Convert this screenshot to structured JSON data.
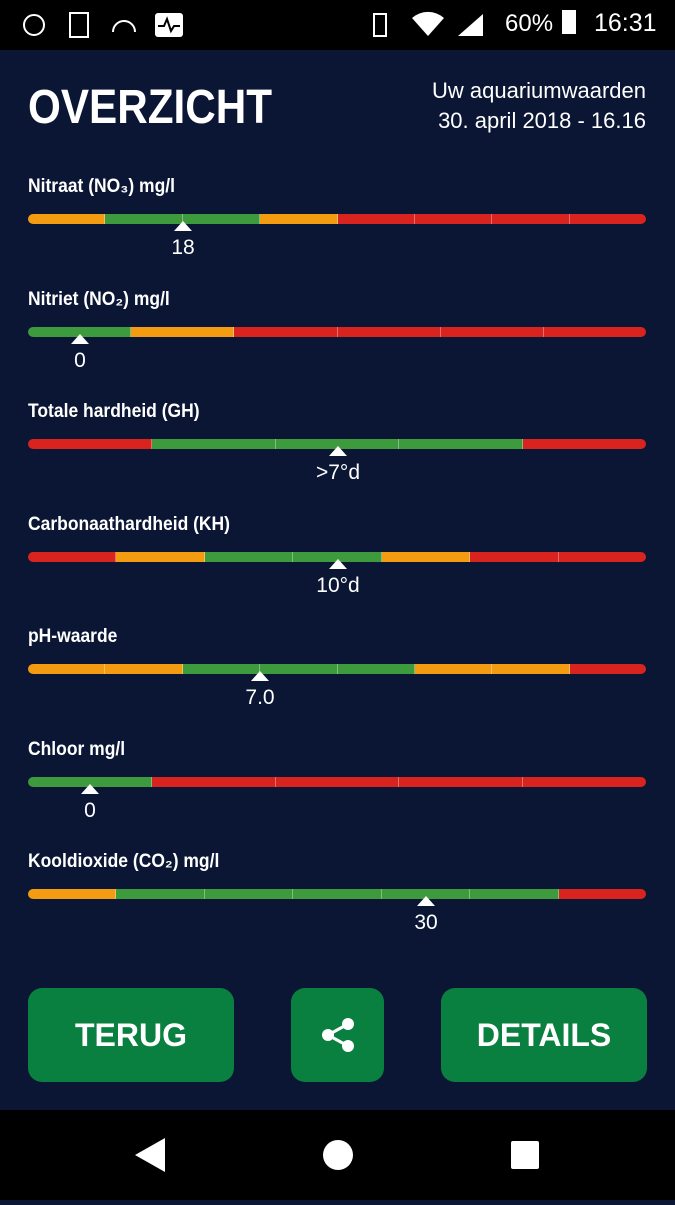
{
  "status_bar": {
    "battery": "60%",
    "time": "16:31"
  },
  "header": {
    "title": "OVERZICHT",
    "subtitle": "Uw aquariumwaarden",
    "date": "30. april 2018 - 16.16"
  },
  "parameters": [
    {
      "label": "Nitraat (NO₃) mg/l",
      "value": "18",
      "segments": [
        "#f39c12",
        "#3d9a3d",
        "#3d9a3d",
        "#f39c12",
        "#d8231e",
        "#d8231e",
        "#d8231e",
        "#d8231e"
      ]
    },
    {
      "label": "Nitriet (NO₂) mg/l",
      "value": "0",
      "segments": [
        "#3d9a3d",
        "#f39c12",
        "#d8231e",
        "#d8231e",
        "#d8231e",
        "#d8231e"
      ]
    },
    {
      "label": "Totale hardheid (GH)",
      "value": ">7°d",
      "segments": [
        "#d8231e",
        "#3d9a3d",
        "#3d9a3d",
        "#3d9a3d",
        "#d8231e"
      ]
    },
    {
      "label": "Carbonaathardheid (KH)",
      "value": "10°d",
      "segments": [
        "#d8231e",
        "#f39c12",
        "#3d9a3d",
        "#3d9a3d",
        "#f39c12",
        "#d8231e",
        "#d8231e"
      ]
    },
    {
      "label": "pH-waarde",
      "value": "7.0",
      "segments": [
        "#f39c12",
        "#f39c12",
        "#3d9a3d",
        "#3d9a3d",
        "#3d9a3d",
        "#f39c12",
        "#f39c12",
        "#d8231e"
      ]
    },
    {
      "label": "Chloor mg/l",
      "value": "0",
      "segments": [
        "#3d9a3d",
        "#d8231e",
        "#d8231e",
        "#d8231e",
        "#d8231e"
      ]
    },
    {
      "label": "Kooldioxide (CO₂) mg/l",
      "value": "30",
      "segments": [
        "#f39c12",
        "#3d9a3d",
        "#3d9a3d",
        "#3d9a3d",
        "#3d9a3d",
        "#3d9a3d",
        "#d8231e"
      ]
    }
  ],
  "buttons": {
    "back": "TERUG",
    "details": "DETAILS"
  }
}
